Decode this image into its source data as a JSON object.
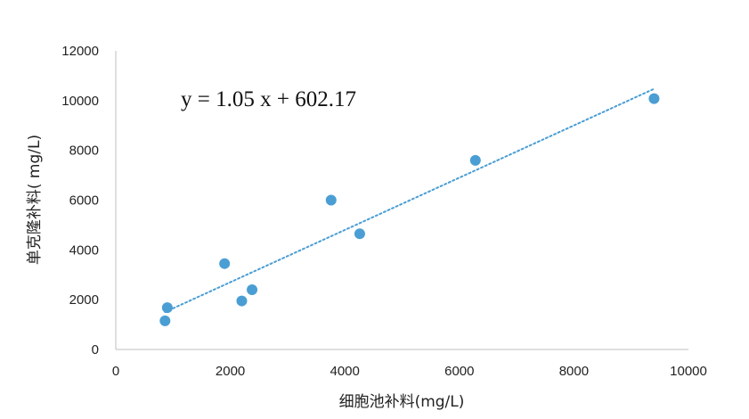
{
  "chart_data": {
    "type": "scatter",
    "xlabel": "细胞池补料(mg/L)",
    "ylabel": "单克隆补料( mg/L)",
    "xlim": [
      0,
      10000
    ],
    "ylim": [
      0,
      12000
    ],
    "x_ticks": [
      0,
      2000,
      4000,
      6000,
      8000,
      10000
    ],
    "y_ticks": [
      0,
      2000,
      4000,
      6000,
      8000,
      10000,
      12000
    ],
    "x_tick_labels": [
      "0",
      "2000",
      "4000",
      "6000",
      "8000",
      "10000"
    ],
    "y_tick_labels": [
      "0",
      "2000",
      "4000",
      "6000",
      "8000",
      "10000",
      "12000"
    ],
    "grid": false,
    "legend": "none",
    "series": [
      {
        "points": [
          {
            "x": 860,
            "y": 1150
          },
          {
            "x": 900,
            "y": 1680
          },
          {
            "x": 1900,
            "y": 3450
          },
          {
            "x": 2200,
            "y": 1950
          },
          {
            "x": 2380,
            "y": 2400
          },
          {
            "x": 3760,
            "y": 6000
          },
          {
            "x": 4260,
            "y": 4650
          },
          {
            "x": 6280,
            "y": 7600
          },
          {
            "x": 9400,
            "y": 10080
          }
        ],
        "color": "#4A9ED4"
      }
    ],
    "trendline": {
      "slope": 1.05,
      "intercept": 602.17,
      "x_range": [
        860,
        9400
      ],
      "color": "#4A9ED4",
      "style": "dotted",
      "equation_label": "y = 1.05 x + 602.17"
    }
  }
}
